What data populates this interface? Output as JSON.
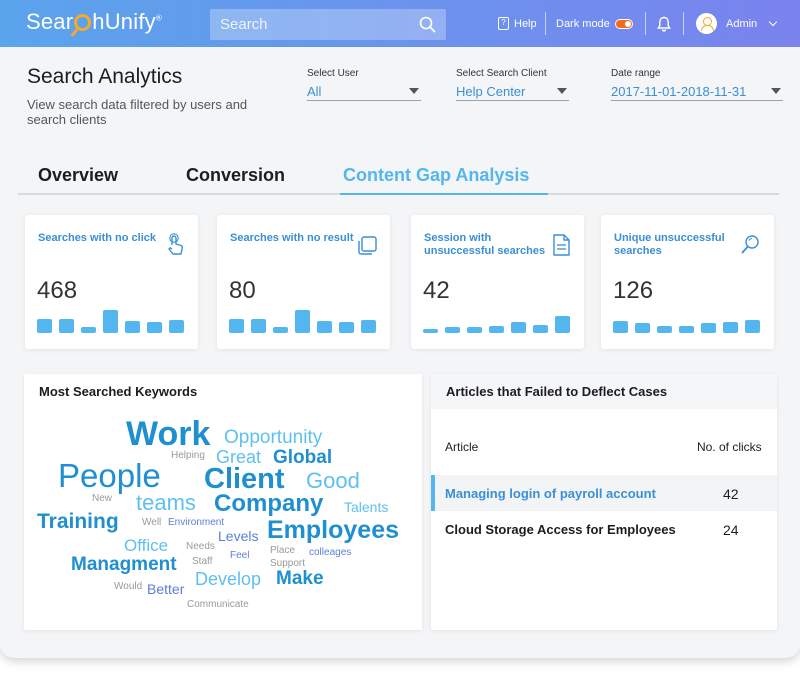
{
  "brand": {
    "logo_text_a": "Sear",
    "logo_text_b": "hUnify",
    "logo_mark": "®"
  },
  "search": {
    "placeholder": "Search",
    "icon": "search-icon"
  },
  "topnav": {
    "help_label": "Help",
    "dark_mode_label": "Dark mode",
    "dark_mode_on": true,
    "user_label": "Admin",
    "accent": "#f26a1b"
  },
  "header": {
    "title": "Search Analytics",
    "subtitle": "View search data filtered by users and search clients"
  },
  "filters": {
    "user": {
      "label": "Select User",
      "value": "All"
    },
    "client": {
      "label": "Select Search Client",
      "value": "Help Center"
    },
    "date": {
      "label": "Date range",
      "value": "2017-11-01-2018-11-31"
    }
  },
  "tabs": [
    {
      "label": "Overview",
      "active": false
    },
    {
      "label": "Conversion",
      "active": false
    },
    {
      "label": "Content Gap Analysis",
      "active": true
    }
  ],
  "cards": [
    {
      "title": "Searches with no click",
      "value": "468",
      "icon": "tap-icon",
      "bars": [
        0.6,
        0.6,
        0.25,
        0.95,
        0.5,
        0.45,
        0.55
      ]
    },
    {
      "title": "Searches with no result",
      "value": "80",
      "icon": "copy-icon",
      "bars": [
        0.6,
        0.6,
        0.25,
        0.95,
        0.5,
        0.45,
        0.55
      ]
    },
    {
      "title": "Session with unsuccessful searches",
      "value": "42",
      "icon": "document-icon",
      "bars": [
        0.15,
        0.25,
        0.25,
        0.3,
        0.45,
        0.35,
        0.7
      ]
    },
    {
      "title": "Unique unsuccessful searches",
      "value": "126",
      "icon": "magnifier-icon",
      "bars": [
        0.5,
        0.4,
        0.3,
        0.3,
        0.4,
        0.45,
        0.55
      ]
    }
  ],
  "keywords_panel": {
    "title": "Most Searched Keywords",
    "words": [
      "Work",
      "Opportunity",
      "Helping",
      "Great",
      "Global",
      "People",
      "Client",
      "Good",
      "New",
      "teams",
      "Company",
      "Talents",
      "Training",
      "Well",
      "Environment",
      "Levels",
      "Employees",
      "Office",
      "Needs",
      "Feel",
      "Place",
      "colleages",
      "Managment",
      "Staff",
      "Support",
      "Develop",
      "Make",
      "Would",
      "Better",
      "Communicate"
    ]
  },
  "articles_panel": {
    "title": "Articles that Failed to Deflect Cases",
    "col_article": "Article",
    "col_clicks": "No. of clicks",
    "rows": [
      {
        "name": "Managing login of payroll account",
        "clicks": "42",
        "highlighted": true
      },
      {
        "name": "Cloud Storage Access for Employees",
        "clicks": "24",
        "highlighted": false
      }
    ]
  },
  "colors": {
    "primary": "#3a8fd6",
    "light": "#54b6ee",
    "word_dark": "#1f8fcf",
    "word_light": "#5ec0f0",
    "word_grey": "#9a9a9a",
    "word_violet": "#5b7fd8"
  }
}
